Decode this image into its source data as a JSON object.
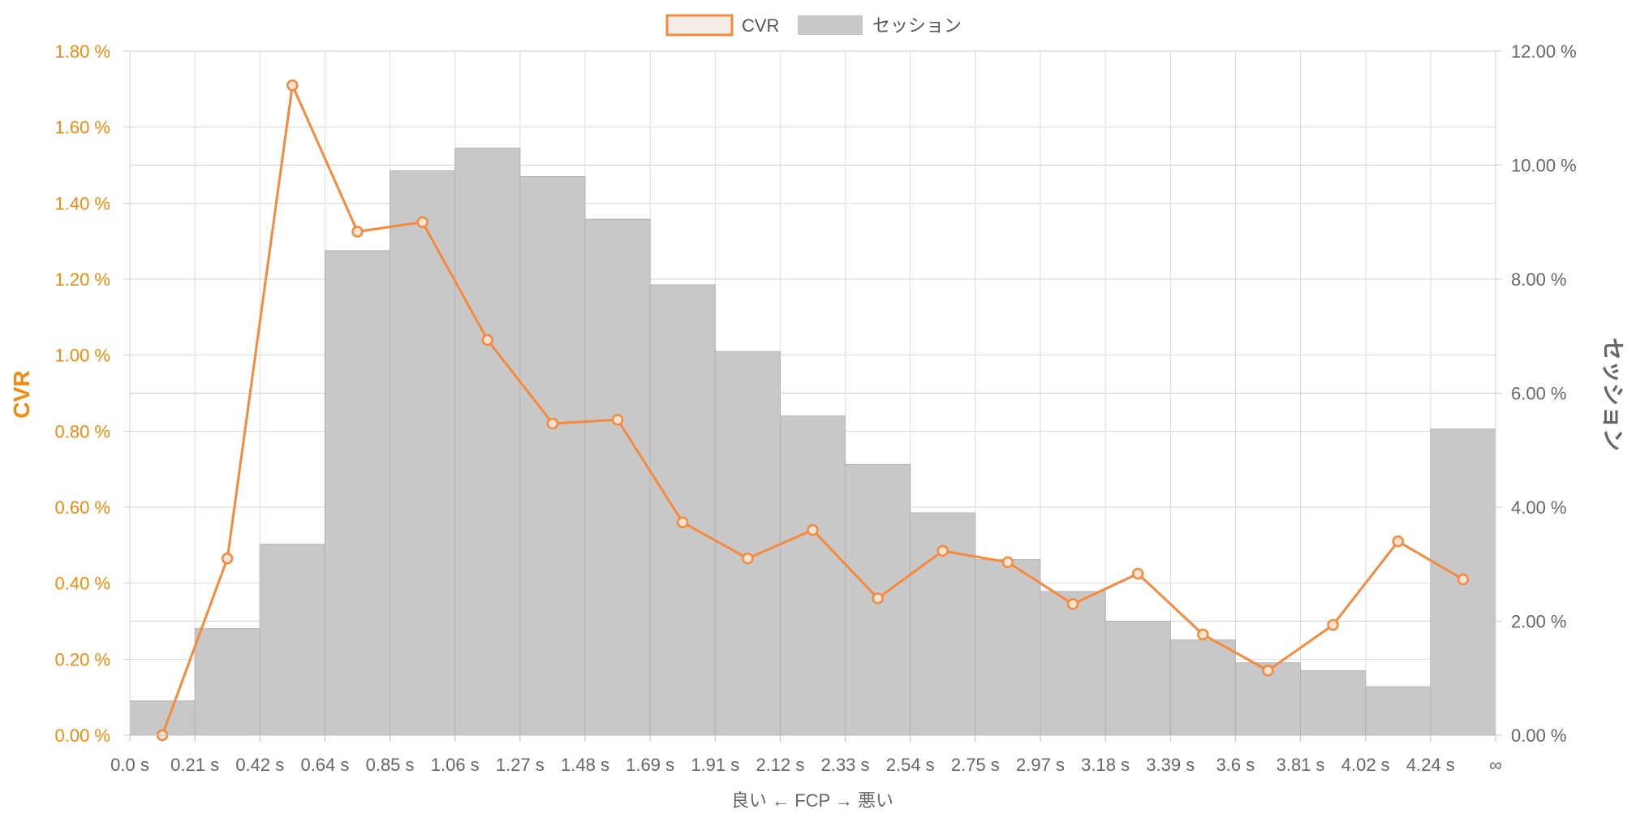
{
  "chart_data": {
    "type": "bar",
    "legend_position": "top",
    "legend": [
      {
        "name": "CVR",
        "style": "line"
      },
      {
        "name": "セッション",
        "style": "bar"
      }
    ],
    "x_ticks": [
      "0.0 s",
      "0.21 s",
      "0.42 s",
      "0.64 s",
      "0.85 s",
      "1.06 s",
      "1.27 s",
      "1.48 s",
      "1.69 s",
      "1.91 s",
      "2.12 s",
      "2.33 s",
      "2.54 s",
      "2.75 s",
      "2.97 s",
      "3.18 s",
      "3.39 s",
      "3.6 s",
      "3.81 s",
      "4.02 s",
      "4.24 s",
      "∞"
    ],
    "xlabel": "良い ← FCP → 悪い",
    "y_left": {
      "label": "CVR",
      "min": 0,
      "max": 1.8,
      "step": 0.2,
      "ticks": [
        "0.00 %",
        "0.20 %",
        "0.40 %",
        "0.60 %",
        "0.80 %",
        "1.00 %",
        "1.20 %",
        "1.40 %",
        "1.60 %",
        "1.80 %"
      ]
    },
    "y_right": {
      "label": "セッション",
      "min": 0,
      "max": 12,
      "step": 2,
      "ticks": [
        "0.00 %",
        "2.00 %",
        "4.00 %",
        "6.00 %",
        "8.00 %",
        "10.00 %",
        "12.00 %"
      ]
    },
    "grid": true,
    "series": [
      {
        "name": "セッション",
        "type": "bar",
        "axis": "right",
        "color": "#c8c8c8",
        "values": [
          0.6,
          1.87,
          3.35,
          8.5,
          9.9,
          10.3,
          9.8,
          9.05,
          7.9,
          6.73,
          5.6,
          4.75,
          3.9,
          3.08,
          2.52,
          2.0,
          1.67,
          1.27,
          1.13,
          0.85,
          5.37
        ]
      },
      {
        "name": "CVR",
        "type": "line",
        "axis": "left",
        "color": "#f58a3d",
        "values": [
          0.0,
          0.465,
          1.71,
          1.325,
          1.35,
          1.04,
          0.82,
          0.83,
          0.56,
          0.465,
          0.54,
          0.36,
          0.485,
          0.455,
          0.345,
          0.425,
          0.265,
          0.17,
          0.29,
          0.51,
          0.41
        ]
      }
    ]
  }
}
